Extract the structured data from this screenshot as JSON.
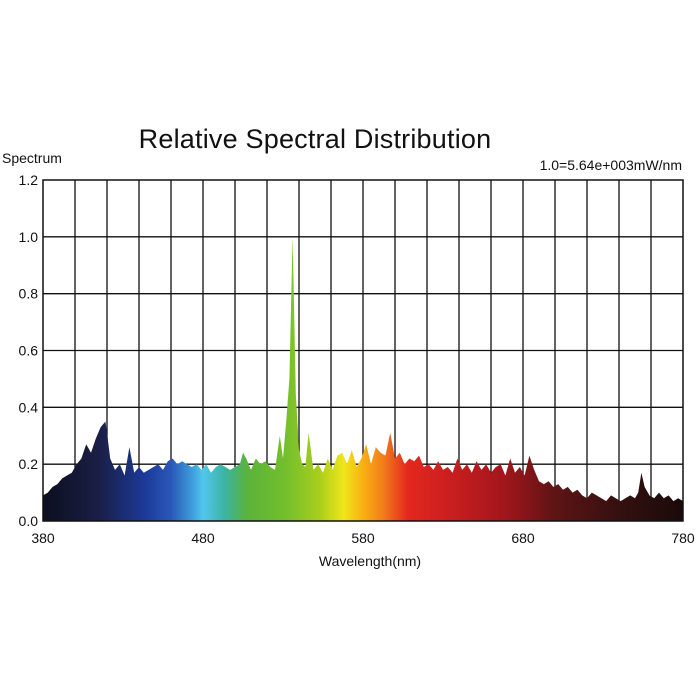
{
  "chart_data": {
    "type": "area",
    "title": "Relative Spectral Distribution",
    "ylabel": "Spectrum",
    "xlabel": "Wavelength(nm)",
    "scale_note": "1.0=5.64e+003mW/nm",
    "xlim": [
      380,
      780
    ],
    "ylim": [
      0,
      1.2
    ],
    "x_ticks": [
      380,
      480,
      580,
      680,
      780
    ],
    "y_ticks": [
      0.0,
      0.2,
      0.4,
      0.6,
      0.8,
      1.0,
      1.2
    ],
    "y_tick_labels": [
      "0.0",
      "0.2",
      "0.4",
      "0.6",
      "0.8",
      "1.0",
      "1.2"
    ],
    "grid": true,
    "fill": "wavelength-colored spectrum",
    "series": [
      {
        "x": [
          380,
          383,
          386,
          389,
          392,
          395,
          398,
          401,
          404,
          407,
          410,
          413,
          416,
          419,
          420,
          422,
          425,
          428,
          431,
          434,
          437,
          440,
          443,
          446,
          449,
          452,
          455,
          458,
          461,
          464,
          467,
          470,
          473,
          476,
          479,
          482,
          485,
          488,
          491,
          494,
          497,
          500,
          503,
          505,
          507,
          510,
          513,
          516,
          519,
          522,
          525,
          528,
          530,
          532,
          534,
          536,
          538,
          540,
          542,
          544,
          546,
          549,
          552,
          555,
          558,
          561,
          564,
          567,
          570,
          573,
          576,
          579,
          582,
          585,
          588,
          591,
          594,
          597,
          600,
          603,
          606,
          609,
          612,
          615,
          618,
          621,
          624,
          627,
          630,
          633,
          636,
          639,
          642,
          645,
          648,
          651,
          654,
          657,
          660,
          663,
          666,
          669,
          672,
          675,
          678,
          681,
          684,
          687,
          690,
          693,
          696,
          699,
          702,
          705,
          708,
          711,
          714,
          717,
          720,
          723,
          726,
          729,
          732,
          735,
          738,
          741,
          744,
          747,
          750,
          752,
          754,
          756,
          759,
          762,
          765,
          768,
          771,
          774,
          777,
          780
        ],
        "y": [
          0.09,
          0.1,
          0.12,
          0.13,
          0.15,
          0.16,
          0.17,
          0.2,
          0.22,
          0.27,
          0.24,
          0.29,
          0.33,
          0.35,
          0.31,
          0.22,
          0.18,
          0.2,
          0.16,
          0.26,
          0.17,
          0.19,
          0.17,
          0.18,
          0.19,
          0.2,
          0.18,
          0.21,
          0.22,
          0.2,
          0.21,
          0.2,
          0.19,
          0.2,
          0.18,
          0.2,
          0.17,
          0.19,
          0.2,
          0.19,
          0.18,
          0.19,
          0.2,
          0.24,
          0.22,
          0.18,
          0.22,
          0.2,
          0.21,
          0.19,
          0.18,
          0.3,
          0.22,
          0.35,
          0.5,
          1.0,
          0.45,
          0.25,
          0.2,
          0.19,
          0.31,
          0.18,
          0.2,
          0.17,
          0.22,
          0.18,
          0.23,
          0.24,
          0.2,
          0.25,
          0.19,
          0.22,
          0.27,
          0.2,
          0.26,
          0.24,
          0.23,
          0.31,
          0.22,
          0.24,
          0.2,
          0.22,
          0.21,
          0.23,
          0.19,
          0.2,
          0.18,
          0.21,
          0.18,
          0.19,
          0.17,
          0.22,
          0.18,
          0.2,
          0.17,
          0.21,
          0.18,
          0.2,
          0.17,
          0.19,
          0.2,
          0.16,
          0.22,
          0.17,
          0.19,
          0.16,
          0.23,
          0.18,
          0.14,
          0.13,
          0.14,
          0.12,
          0.13,
          0.11,
          0.12,
          0.1,
          0.11,
          0.09,
          0.08,
          0.1,
          0.09,
          0.08,
          0.07,
          0.09,
          0.08,
          0.07,
          0.08,
          0.09,
          0.08,
          0.1,
          0.17,
          0.12,
          0.09,
          0.08,
          0.1,
          0.08,
          0.09,
          0.07,
          0.08,
          0.07
        ]
      }
    ]
  }
}
